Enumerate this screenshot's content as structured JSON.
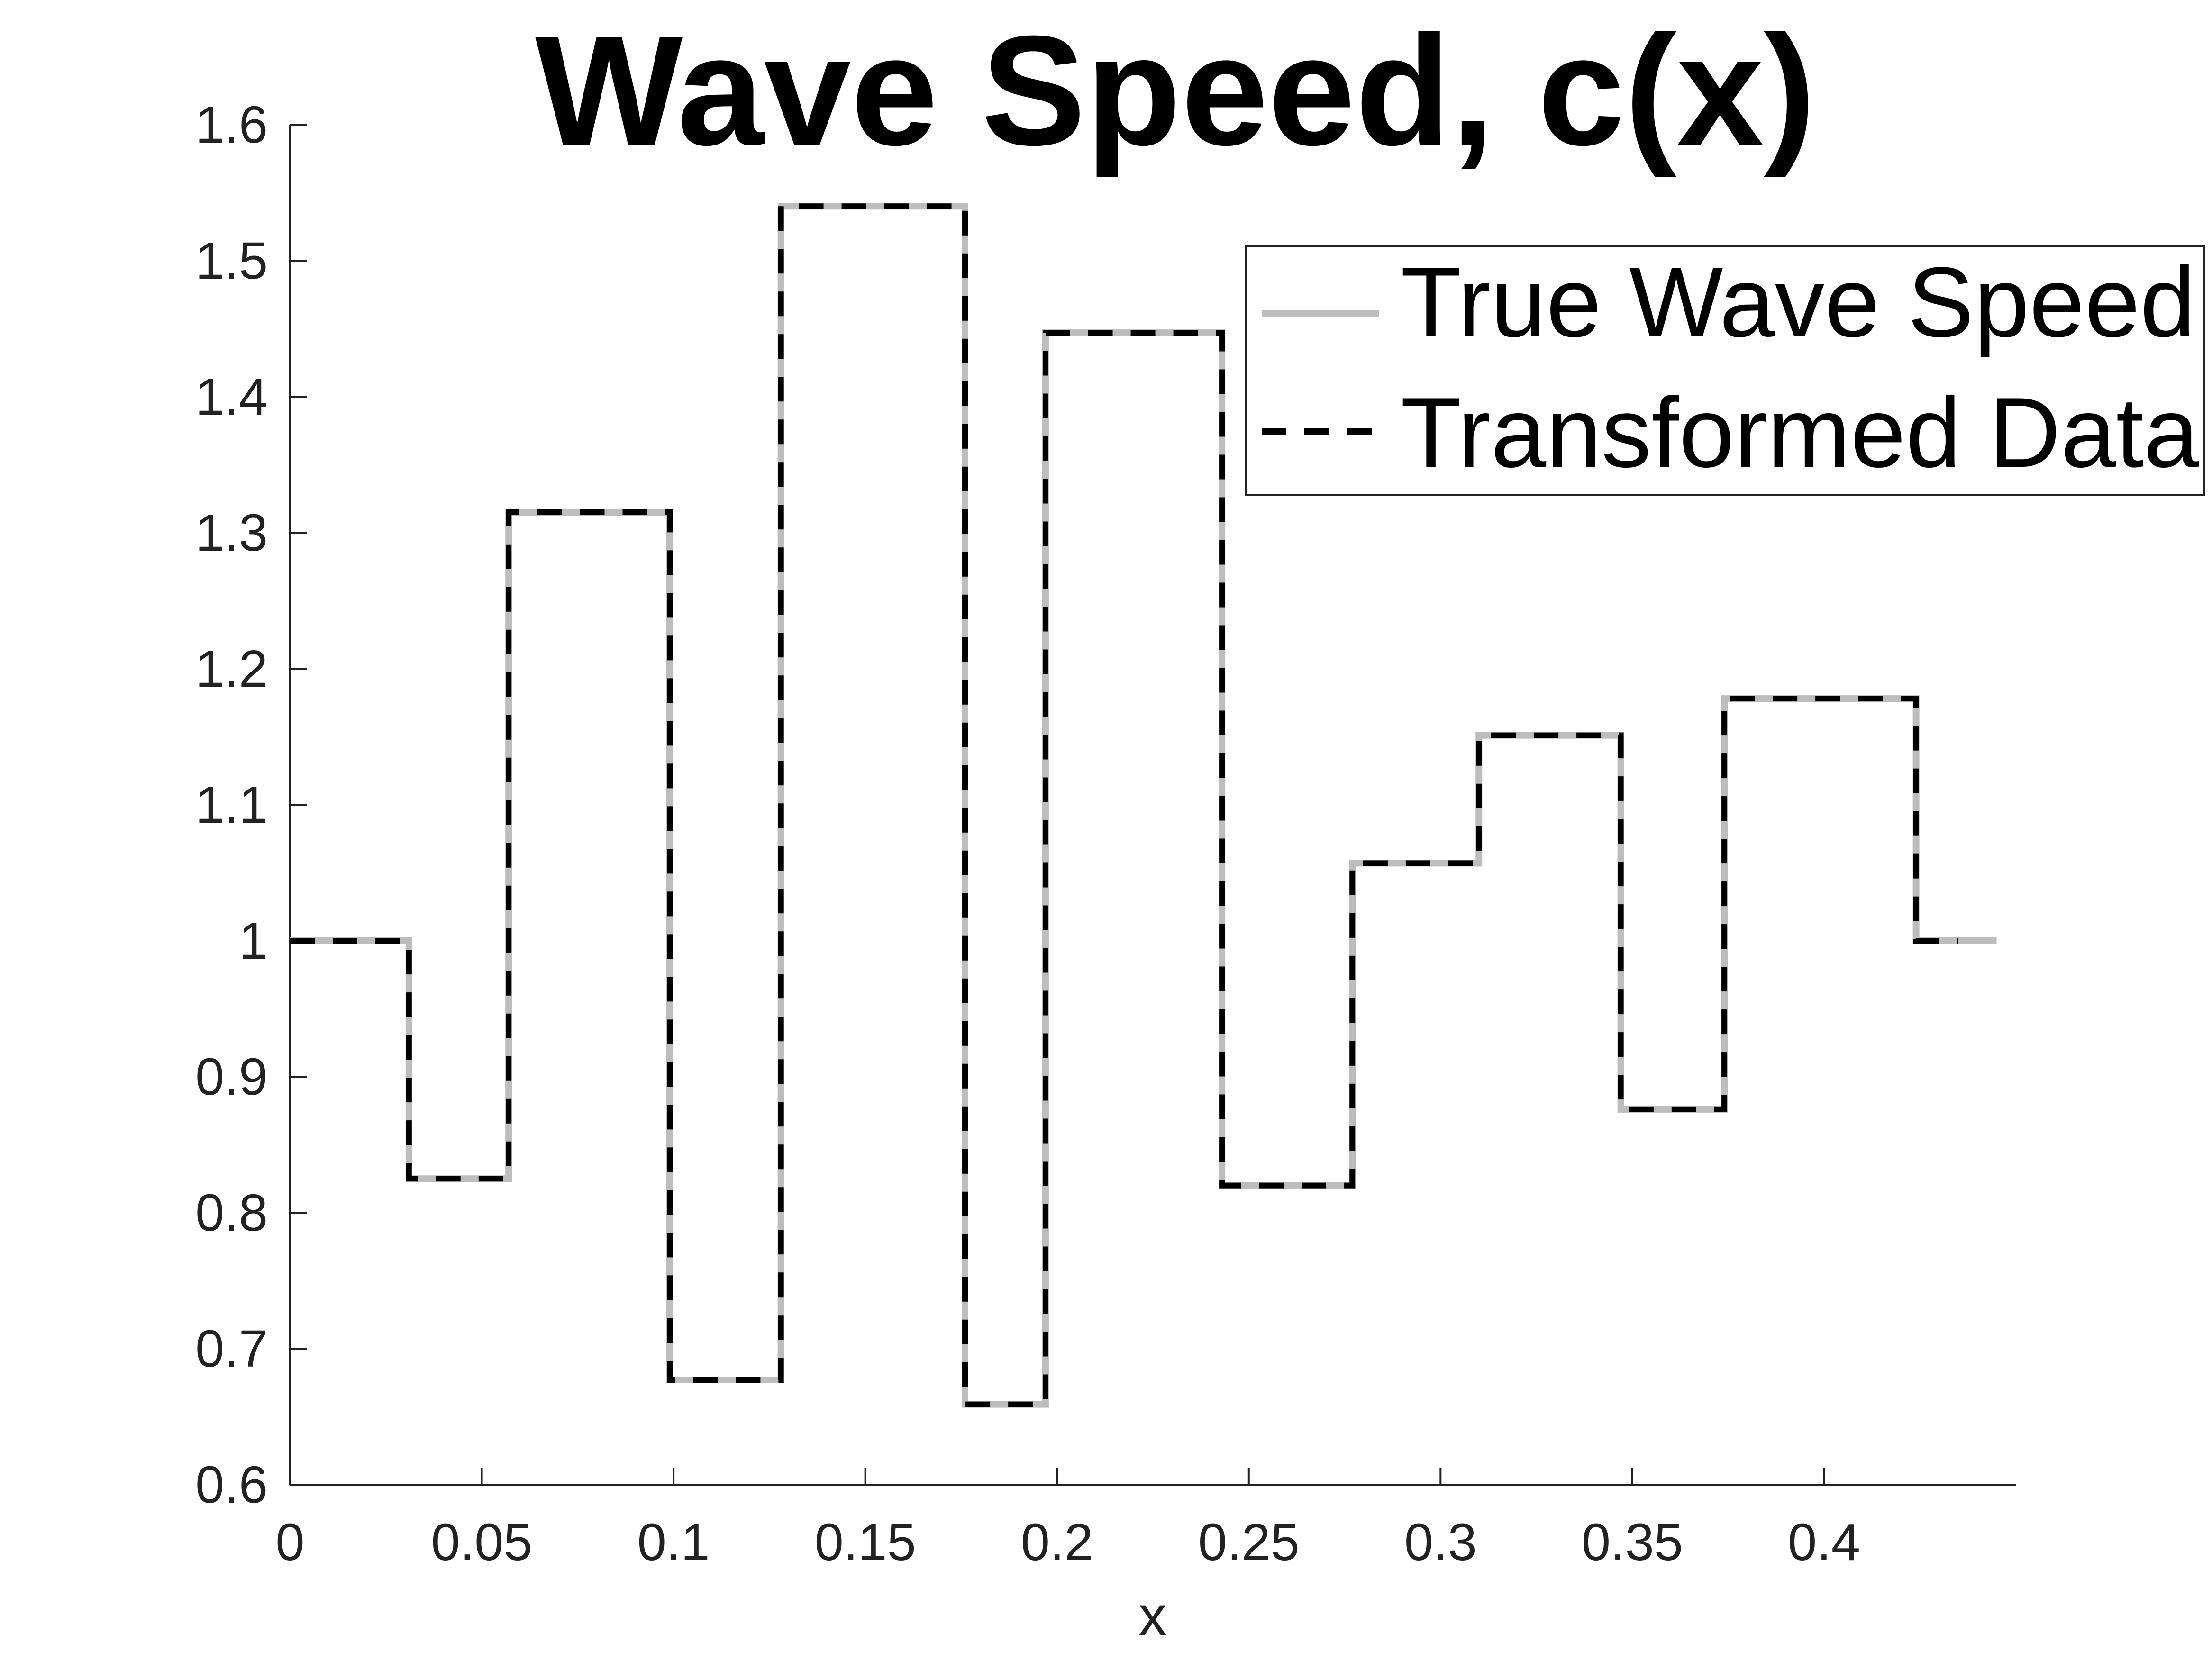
{
  "chart_data": {
    "type": "line",
    "title": "Wave Speed, c(x)",
    "xlabel": "x",
    "ylabel": "",
    "xlim": [
      0,
      0.45
    ],
    "ylim": [
      0.6,
      1.6
    ],
    "xticks": [
      0,
      0.05,
      0.1,
      0.15,
      0.2,
      0.25,
      0.3,
      0.35,
      0.4
    ],
    "xtick_labels": [
      "0",
      "0.05",
      "0.1",
      "0.15",
      "0.2",
      "0.25",
      "0.3",
      "0.35",
      "0.4"
    ],
    "yticks": [
      0.6,
      0.7,
      0.8,
      0.9,
      1.0,
      1.1,
      1.2,
      1.3,
      1.4,
      1.5,
      1.6
    ],
    "ytick_labels": [
      "0.6",
      "0.7",
      "0.8",
      "0.9",
      "1",
      "1.1",
      "1.2",
      "1.3",
      "1.4",
      "1.5",
      "1.6"
    ],
    "grid": false,
    "legend": {
      "position": "top-right",
      "entries": [
        "True Wave Speed",
        "Transformed Data"
      ]
    },
    "series": [
      {
        "name": "True Wave Speed",
        "style": "solid",
        "color": "#bdbdbd",
        "x": [
          0,
          0.031,
          0.031,
          0.057,
          0.057,
          0.099,
          0.099,
          0.128,
          0.128,
          0.176,
          0.176,
          0.197,
          0.197,
          0.243,
          0.243,
          0.277,
          0.277,
          0.31,
          0.31,
          0.347,
          0.347,
          0.374,
          0.374,
          0.424,
          0.424,
          0.445
        ],
        "y": [
          1.0,
          1.0,
          0.825,
          0.825,
          1.315,
          1.315,
          0.677,
          0.677,
          1.54,
          1.54,
          0.659,
          0.659,
          1.447,
          1.447,
          0.82,
          0.82,
          1.057,
          1.057,
          1.151,
          1.151,
          0.876,
          0.876,
          1.178,
          1.178,
          1.0,
          1.0
        ]
      },
      {
        "name": "Transformed Data",
        "style": "dashed",
        "color": "#000000",
        "x": [
          0,
          0.031,
          0.031,
          0.057,
          0.057,
          0.099,
          0.099,
          0.128,
          0.128,
          0.176,
          0.176,
          0.197,
          0.197,
          0.243,
          0.243,
          0.277,
          0.277,
          0.31,
          0.31,
          0.347,
          0.347,
          0.374,
          0.374,
          0.424,
          0.424,
          0.435
        ],
        "y": [
          1.0,
          1.0,
          0.825,
          0.825,
          1.315,
          1.315,
          0.677,
          0.677,
          1.54,
          1.54,
          0.659,
          0.659,
          1.447,
          1.447,
          0.82,
          0.82,
          1.057,
          1.057,
          1.151,
          1.151,
          0.876,
          0.876,
          1.178,
          1.178,
          1.0,
          1.0
        ]
      }
    ]
  }
}
